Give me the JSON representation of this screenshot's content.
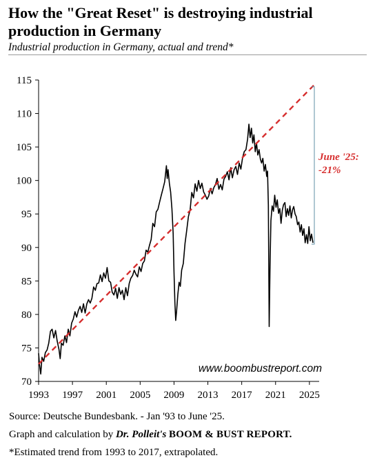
{
  "title": "How the \"Great Reset\" is destroying industrial production in Germany",
  "subtitle": "Industrial production in Germany, actual and trend*",
  "watermark": "www.boombustreport.com",
  "annotation": {
    "line1": "June '25:",
    "line2": "-21%",
    "color": "#d62e2e"
  },
  "footer": {
    "source": "Source: Deutsche Bundesbank. - Jan '93 to June '25.",
    "credit_prefix": "Graph and calculation by ",
    "credit_author": "Dr. Polleit's",
    "credit_report": "BOOM & BUST REPORT.",
    "note": "*Estimated trend from 1993 to 2017, extrapolated."
  },
  "chart_data": {
    "type": "line",
    "title": "Industrial production in Germany, actual and trend*",
    "xlim": [
      1993,
      2025.5
    ],
    "ylim": [
      70,
      115
    ],
    "x_ticks": [
      1993,
      1997,
      2001,
      2005,
      2009,
      2013,
      2017,
      2021,
      2025
    ],
    "y_ticks": [
      70,
      75,
      80,
      85,
      90,
      95,
      100,
      105,
      110,
      115
    ],
    "grid": false,
    "series": [
      {
        "color": "#000000",
        "style": "solid",
        "points": [
          [
            1993.0,
            74.2
          ],
          [
            1993.1,
            72.6
          ],
          [
            1993.25,
            71.1
          ],
          [
            1993.4,
            73.6
          ],
          [
            1993.6,
            73.0
          ],
          [
            1993.8,
            74.3
          ],
          [
            1994.0,
            74.7
          ],
          [
            1994.2,
            75.7
          ],
          [
            1994.4,
            77.5
          ],
          [
            1994.6,
            77.8
          ],
          [
            1994.8,
            76.5
          ],
          [
            1995.0,
            77.6
          ],
          [
            1995.2,
            76.0
          ],
          [
            1995.4,
            74.8
          ],
          [
            1995.55,
            73.4
          ],
          [
            1995.7,
            75.7
          ],
          [
            1995.9,
            75.4
          ],
          [
            1996.1,
            76.8
          ],
          [
            1996.3,
            75.8
          ],
          [
            1996.5,
            77.8
          ],
          [
            1996.7,
            76.8
          ],
          [
            1996.9,
            78.7
          ],
          [
            1997.1,
            79.3
          ],
          [
            1997.3,
            80.4
          ],
          [
            1997.5,
            79.6
          ],
          [
            1997.7,
            80.6
          ],
          [
            1997.9,
            81.2
          ],
          [
            1998.1,
            80.3
          ],
          [
            1998.3,
            81.6
          ],
          [
            1998.5,
            80.2
          ],
          [
            1998.7,
            81.6
          ],
          [
            1998.9,
            82.2
          ],
          [
            1999.1,
            81.7
          ],
          [
            1999.3,
            82.4
          ],
          [
            1999.5,
            84.1
          ],
          [
            1999.7,
            83.6
          ],
          [
            1999.9,
            84.6
          ],
          [
            2000.1,
            84.7
          ],
          [
            2000.3,
            85.9
          ],
          [
            2000.5,
            84.9
          ],
          [
            2000.7,
            86.2
          ],
          [
            2000.9,
            85.4
          ],
          [
            2001.1,
            87.0
          ],
          [
            2001.3,
            85.0
          ],
          [
            2001.5,
            84.8
          ],
          [
            2001.7,
            83.3
          ],
          [
            2001.9,
            82.9
          ],
          [
            2002.1,
            83.9
          ],
          [
            2002.3,
            82.4
          ],
          [
            2002.5,
            84.0
          ],
          [
            2002.7,
            83.0
          ],
          [
            2002.9,
            83.6
          ],
          [
            2003.1,
            82.2
          ],
          [
            2003.3,
            84.0
          ],
          [
            2003.5,
            82.8
          ],
          [
            2003.7,
            84.6
          ],
          [
            2003.9,
            85.4
          ],
          [
            2004.1,
            85.8
          ],
          [
            2004.3,
            86.6
          ],
          [
            2004.5,
            86.0
          ],
          [
            2004.7,
            85.6
          ],
          [
            2004.9,
            87.1
          ],
          [
            2005.1,
            86.4
          ],
          [
            2005.3,
            87.6
          ],
          [
            2005.5,
            88.0
          ],
          [
            2005.7,
            89.6
          ],
          [
            2005.9,
            89.3
          ],
          [
            2006.1,
            90.3
          ],
          [
            2006.3,
            91.2
          ],
          [
            2006.5,
            93.6
          ],
          [
            2006.7,
            93.1
          ],
          [
            2006.9,
            95.3
          ],
          [
            2007.1,
            95.7
          ],
          [
            2007.3,
            96.8
          ],
          [
            2007.5,
            97.8
          ],
          [
            2007.7,
            98.8
          ],
          [
            2007.9,
            99.8
          ],
          [
            2008.1,
            102.2
          ],
          [
            2008.2,
            100.3
          ],
          [
            2008.3,
            101.6
          ],
          [
            2008.45,
            99.6
          ],
          [
            2008.6,
            98.3
          ],
          [
            2008.75,
            95.8
          ],
          [
            2008.9,
            92.1
          ],
          [
            2009.0,
            86.4
          ],
          [
            2009.1,
            81.8
          ],
          [
            2009.2,
            79.1
          ],
          [
            2009.3,
            80.4
          ],
          [
            2009.45,
            83.0
          ],
          [
            2009.6,
            84.8
          ],
          [
            2009.75,
            84.2
          ],
          [
            2009.9,
            86.6
          ],
          [
            2010.1,
            87.6
          ],
          [
            2010.3,
            90.6
          ],
          [
            2010.5,
            92.5
          ],
          [
            2010.7,
            94.6
          ],
          [
            2010.9,
            95.6
          ],
          [
            2011.1,
            98.2
          ],
          [
            2011.3,
            97.4
          ],
          [
            2011.5,
            99.5
          ],
          [
            2011.7,
            98.4
          ],
          [
            2011.9,
            100.0
          ],
          [
            2012.1,
            98.8
          ],
          [
            2012.3,
            99.6
          ],
          [
            2012.5,
            98.3
          ],
          [
            2012.7,
            97.8
          ],
          [
            2012.9,
            97.2
          ],
          [
            2013.1,
            97.7
          ],
          [
            2013.3,
            98.8
          ],
          [
            2013.5,
            98.0
          ],
          [
            2013.7,
            98.9
          ],
          [
            2013.9,
            99.4
          ],
          [
            2014.1,
            100.3
          ],
          [
            2014.3,
            98.7
          ],
          [
            2014.5,
            99.4
          ],
          [
            2014.7,
            98.6
          ],
          [
            2014.9,
            100.2
          ],
          [
            2015.1,
            100.6
          ],
          [
            2015.3,
            101.3
          ],
          [
            2015.5,
            100.1
          ],
          [
            2015.7,
            101.9
          ],
          [
            2015.9,
            100.4
          ],
          [
            2016.1,
            101.6
          ],
          [
            2016.3,
            102.1
          ],
          [
            2016.5,
            100.9
          ],
          [
            2016.7,
            102.6
          ],
          [
            2016.9,
            101.7
          ],
          [
            2017.1,
            103.4
          ],
          [
            2017.3,
            104.3
          ],
          [
            2017.5,
            104.6
          ],
          [
            2017.7,
            106.2
          ],
          [
            2017.85,
            108.4
          ],
          [
            2018.0,
            106.4
          ],
          [
            2018.15,
            107.8
          ],
          [
            2018.3,
            105.6
          ],
          [
            2018.45,
            106.8
          ],
          [
            2018.6,
            104.3
          ],
          [
            2018.75,
            105.6
          ],
          [
            2018.9,
            103.8
          ],
          [
            2019.05,
            104.6
          ],
          [
            2019.2,
            103.2
          ],
          [
            2019.35,
            102.6
          ],
          [
            2019.5,
            103.3
          ],
          [
            2019.65,
            101.4
          ],
          [
            2019.8,
            102.4
          ],
          [
            2019.95,
            100.6
          ],
          [
            2020.05,
            101.4
          ],
          [
            2020.15,
            96.3
          ],
          [
            2020.25,
            78.2
          ],
          [
            2020.35,
            87.8
          ],
          [
            2020.45,
            94.0
          ],
          [
            2020.6,
            96.2
          ],
          [
            2020.75,
            95.4
          ],
          [
            2020.9,
            97.8
          ],
          [
            2021.05,
            96.0
          ],
          [
            2021.2,
            97.1
          ],
          [
            2021.35,
            95.1
          ],
          [
            2021.5,
            95.8
          ],
          [
            2021.65,
            93.6
          ],
          [
            2021.8,
            95.6
          ],
          [
            2021.95,
            96.4
          ],
          [
            2022.1,
            96.7
          ],
          [
            2022.25,
            94.6
          ],
          [
            2022.4,
            95.8
          ],
          [
            2022.55,
            94.8
          ],
          [
            2022.7,
            96.2
          ],
          [
            2022.85,
            94.4
          ],
          [
            2023.0,
            95.6
          ],
          [
            2023.15,
            96.1
          ],
          [
            2023.3,
            95.0
          ],
          [
            2023.45,
            94.6
          ],
          [
            2023.6,
            93.4
          ],
          [
            2023.75,
            93.8
          ],
          [
            2023.9,
            92.3
          ],
          [
            2024.05,
            93.4
          ],
          [
            2024.2,
            91.8
          ],
          [
            2024.35,
            92.8
          ],
          [
            2024.5,
            90.7
          ],
          [
            2024.65,
            91.9
          ],
          [
            2024.8,
            90.6
          ],
          [
            2024.95,
            93.1
          ],
          [
            2025.1,
            91.0
          ],
          [
            2025.25,
            92.0
          ],
          [
            2025.42,
            90.7
          ]
        ]
      },
      {
        "color": "#d62e2e",
        "style": "dashed",
        "points": [
          [
            1993.0,
            72.6
          ],
          [
            2025.5,
            114.2
          ]
        ]
      }
    ]
  }
}
